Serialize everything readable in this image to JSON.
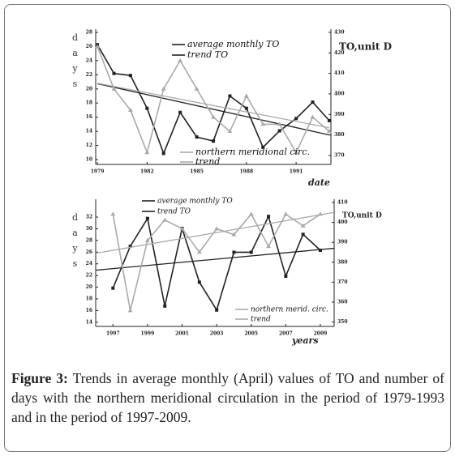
{
  "chart_data": [
    {
      "type": "line",
      "y_label": "days",
      "y2_label": "TO,unit D",
      "x_label": "date",
      "x": [
        1979,
        1980,
        1981,
        1982,
        1983,
        1984,
        1985,
        1986,
        1987,
        1988,
        1989,
        1990,
        1991,
        1992,
        1993
      ],
      "xlim": [
        1978.9,
        1993.1
      ],
      "xticks": [
        1979,
        1982,
        1985,
        1988,
        1991
      ],
      "ylim": [
        10,
        28
      ],
      "yticks": [
        10,
        12,
        14,
        16,
        18,
        20,
        22,
        24,
        26,
        28
      ],
      "y2lim": [
        368,
        430
      ],
      "y2ticks": [
        370,
        380,
        390,
        400,
        410,
        420,
        430
      ],
      "series": [
        {
          "name": "average monthly TO",
          "color": "#222222",
          "axis": "y2",
          "values": [
            424,
            410,
            409,
            393,
            371,
            391,
            379,
            377,
            399,
            393,
            374,
            382,
            388,
            396,
            387
          ]
        },
        {
          "name": "trend TO",
          "color": "#222222",
          "axis": "y2",
          "x": [
            1979,
            1993
          ],
          "values": [
            405,
            380
          ]
        },
        {
          "name": "northern meridional circ.",
          "color": "#aaaaaa",
          "axis": "y",
          "values": [
            26,
            20,
            17,
            11,
            20,
            24,
            20,
            16,
            14,
            19,
            15,
            15,
            11,
            16,
            14
          ]
        },
        {
          "name": "trend",
          "color": "#aaaaaa",
          "axis": "y",
          "x": [
            1979,
            1993
          ],
          "values": [
            20.8,
            14.5
          ]
        }
      ]
    },
    {
      "type": "line",
      "y_label": "days",
      "y2_label": "TO,unit D",
      "x_label": "years",
      "x": [
        1997,
        1998,
        1999,
        2000,
        2001,
        2002,
        2003,
        2004,
        2005,
        2006,
        2007,
        2008,
        2009
      ],
      "xlim": [
        1996,
        2009.8
      ],
      "xticks": [
        1997,
        1999,
        2001,
        2003,
        2005,
        2007,
        2009
      ],
      "ylim": [
        13.7,
        34.5
      ],
      "yticks": [
        14,
        16,
        18,
        20,
        22,
        24,
        26,
        28,
        30,
        32
      ],
      "y2lim": [
        349,
        410
      ],
      "y2ticks": [
        350,
        360,
        370,
        380,
        390,
        400,
        410
      ],
      "series": [
        {
          "name": "average monthly TO",
          "color": "#222222",
          "axis": "y2",
          "values": [
            367,
            388,
            402,
            358,
            397,
            370,
            356,
            385,
            385,
            403,
            373,
            394,
            386
          ]
        },
        {
          "name": "trend TO",
          "color": "#222222",
          "axis": "y2",
          "x": [
            1996,
            2009.8
          ],
          "values": [
            376,
            387
          ]
        },
        {
          "name": "northern merid. circ.",
          "color": "#aaaaaa",
          "axis": "y",
          "values": [
            32.5,
            16,
            28,
            31.5,
            30,
            26,
            30,
            29,
            32.5,
            27,
            32.5,
            30.5,
            32.5
          ]
        },
        {
          "name": "trend",
          "color": "#aaaaaa",
          "axis": "y",
          "x": [
            1996,
            2009.8
          ],
          "values": [
            25.8,
            32.8
          ]
        }
      ]
    }
  ],
  "caption": {
    "label": "Figure 3:",
    "text": "Trends in average monthly (April) values of TO and number of days with the northern meridional circulation in the period of 1979-1993 and in the period of 1997-2009."
  }
}
